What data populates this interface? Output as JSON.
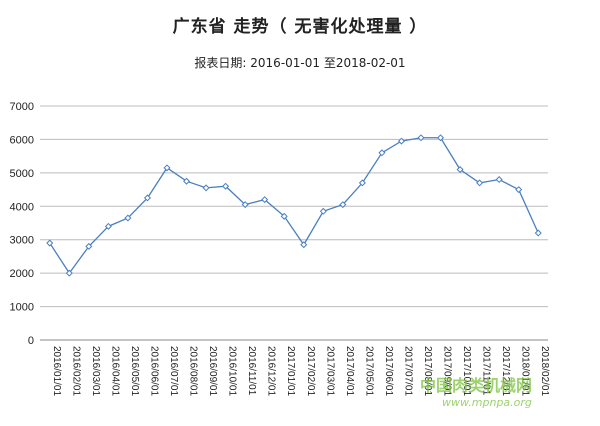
{
  "header": {
    "title": "广东省 走势（ 无害化处理量 ）",
    "subtitle": "报表日期: 2016-01-01 至2018-02-01"
  },
  "watermark": {
    "text": "中国肉类机械网",
    "url": "www.mpnpa.org"
  },
  "colors": {
    "line": "#4a7fc1",
    "grid": "#bcbcbc"
  },
  "chart_data": {
    "type": "line",
    "title": "广东省 走势（ 无害化处理量 ）",
    "subtitle": "报表日期: 2016-01-01 至2018-02-01",
    "xlabel": "",
    "ylabel": "",
    "ylim": [
      0,
      7000
    ],
    "yticks": [
      0,
      1000,
      2000,
      3000,
      4000,
      5000,
      6000,
      7000
    ],
    "grid": true,
    "legend": "none",
    "categories": [
      "2016/01/01",
      "2016/02/01",
      "2016/03/01",
      "2016/04/01",
      "2016/05/01",
      "2016/06/01",
      "2016/07/01",
      "2016/08/01",
      "2016/09/01",
      "2016/10/01",
      "2016/11/01",
      "2016/12/01",
      "2017/01/01",
      "2017/02/01",
      "2017/03/01",
      "2017/04/01",
      "2017/05/01",
      "2017/06/01",
      "2017/07/01",
      "2017/08/01",
      "2017/09/01",
      "2017/10/01",
      "2017/11/01",
      "2017/12/01",
      "2018/01/01",
      "2018/02/01"
    ],
    "series": [
      {
        "values": [
          2900,
          2000,
          2800,
          3400,
          3650,
          4250,
          5150,
          4750,
          4550,
          4600,
          4050,
          4200,
          3700,
          2850,
          3850,
          4050,
          4700,
          5600,
          5950,
          6050,
          6050,
          5100,
          4700,
          4800,
          4500,
          3200
        ]
      }
    ]
  }
}
